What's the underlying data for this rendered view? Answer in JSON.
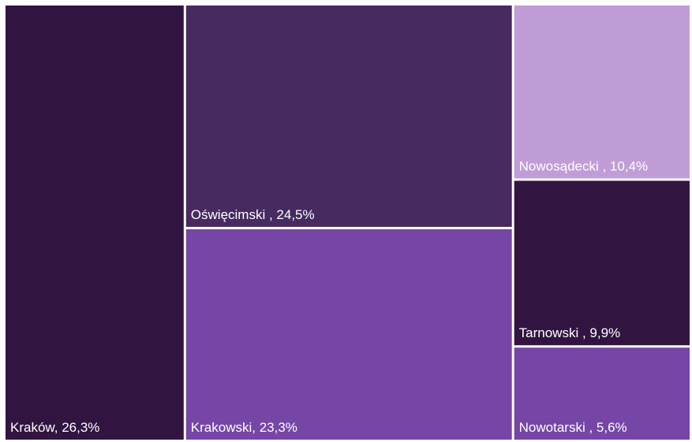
{
  "chart_data": {
    "type": "treemap",
    "values": [
      26.3,
      24.5,
      23.3,
      10.4,
      9.9,
      5.6
    ],
    "value_labels": [
      "Kraków, 26,3%",
      "Oświęcimski , 24,5%",
      "Krakowski, 23,3%",
      "Nowosądecki , 10,4%",
      "Tarnowski , 9,9%",
      "Nowotarski , 5,6%"
    ],
    "colors": [
      "#321441",
      "#472a5f",
      "#7546a6",
      "#c09dd6",
      "#321441",
      "#7546a6"
    ]
  }
}
